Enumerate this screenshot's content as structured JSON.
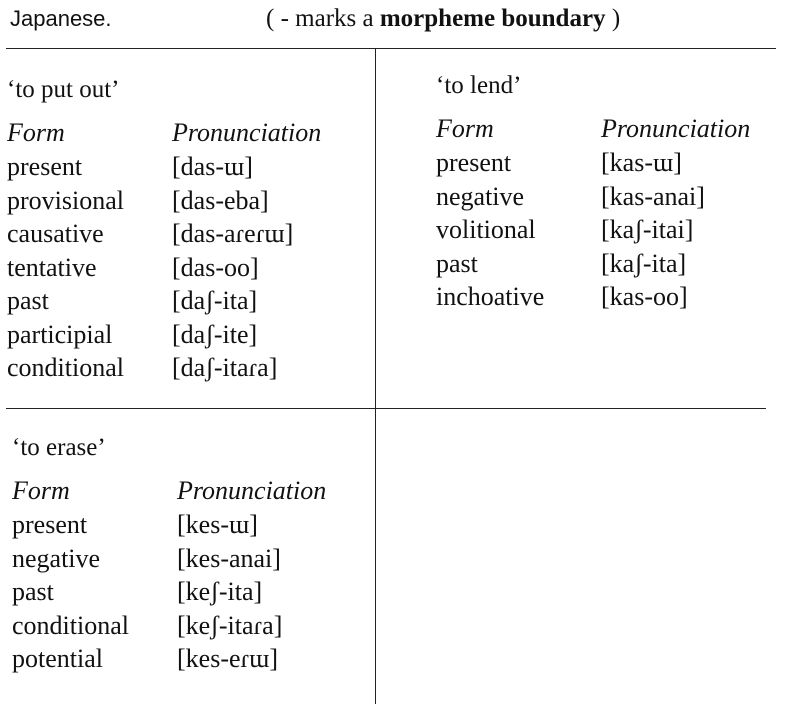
{
  "header": {
    "language": "Japanese.",
    "note_prefix": "( - marks a ",
    "note_bold": "morpheme boundary",
    "note_suffix": " )"
  },
  "columns": {
    "form": "Form",
    "pronunciation": "Pronunciation"
  },
  "verbs": [
    {
      "gloss": "‘to put out’",
      "rows": [
        {
          "form": "present",
          "pron": "[das-ɯ]"
        },
        {
          "form": "provisional",
          "pron": "[das-eba]"
        },
        {
          "form": "causative",
          "pron": "[das-aɾeɾɯ]"
        },
        {
          "form": "tentative",
          "pron": "[das-oo]"
        },
        {
          "form": "past",
          "pron": "[daʃ-ita]"
        },
        {
          "form": "participial",
          "pron": "[daʃ-ite]"
        },
        {
          "form": "conditional",
          "pron": "[daʃ-itaɾa]"
        }
      ]
    },
    {
      "gloss": "‘to lend’",
      "rows": [
        {
          "form": "present",
          "pron": "[kas-ɯ]"
        },
        {
          "form": "negative",
          "pron": "[kas-anai]"
        },
        {
          "form": "volitional",
          "pron": "[kaʃ-itai]"
        },
        {
          "form": "past",
          "pron": "[kaʃ-ita]"
        },
        {
          "form": "inchoative",
          "pron": "[kas-oo]"
        }
      ]
    },
    {
      "gloss": "‘to erase’",
      "rows": [
        {
          "form": "present",
          "pron": "[kes-ɯ]"
        },
        {
          "form": "negative",
          "pron": "[kes-anai]"
        },
        {
          "form": "past",
          "pron": "[keʃ-ita]"
        },
        {
          "form": "conditional",
          "pron": "[keʃ-itaɾa]"
        },
        {
          "form": "potential",
          "pron": "[kes-eɾɯ]"
        }
      ]
    }
  ]
}
